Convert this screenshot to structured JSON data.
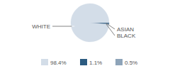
{
  "chart_data": {
    "type": "pie",
    "categories": [
      "WHITE",
      "ASIAN",
      "BLACK"
    ],
    "values": [
      98.4,
      1.1,
      0.5
    ],
    "value_labels": [
      "98.4%",
      "1.1%",
      "0.5%"
    ],
    "colors": [
      "#d3dde8",
      "#2c5b80",
      "#8ea4b9"
    ],
    "legend": "bottom"
  }
}
